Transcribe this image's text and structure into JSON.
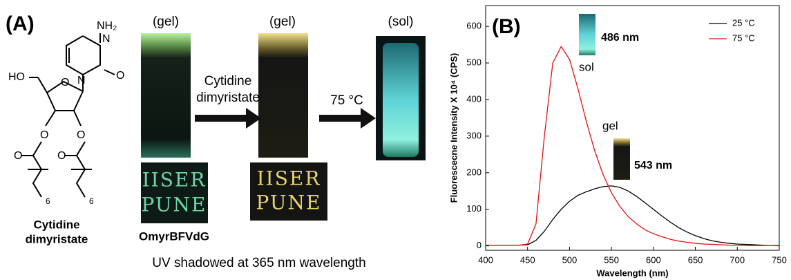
{
  "panel_a": {
    "label": "(A)",
    "structure_labels": [
      "NH₂",
      "N",
      "N",
      "O",
      "HO",
      "O",
      "O",
      "O",
      "O",
      "O",
      "6",
      "6"
    ],
    "compound": [
      "Cytidine",
      "dimyristate"
    ],
    "states": [
      "(gel)",
      "(gel)",
      "(sol)"
    ],
    "handwriting": [
      "IISER",
      "PUNE"
    ],
    "gelator": "OmyrBFVdG",
    "arrow_1": [
      "Cytidine",
      "dimyristate"
    ],
    "arrow_2": "75 °C",
    "caption": "UV shadowed at 365 nm wavelength"
  },
  "chart_data": {
    "type": "line",
    "panel_label": "(B)",
    "xlabel": "Wavelength (nm)",
    "ylabel": "Fluorescecne Intensity X 10⁴ (CPS)",
    "x": [
      400,
      410,
      420,
      430,
      440,
      450,
      460,
      470,
      480,
      490,
      500,
      510,
      520,
      530,
      540,
      550,
      560,
      570,
      580,
      590,
      600,
      610,
      620,
      630,
      640,
      650,
      660,
      670,
      680,
      690,
      700,
      710,
      720,
      730,
      740,
      750
    ],
    "series": [
      {
        "name": "25 °C",
        "color": "#000000",
        "values": [
          2,
          2,
          2,
          2,
          2,
          3,
          15,
          40,
          72,
          100,
          122,
          138,
          148,
          156,
          162,
          164,
          160,
          150,
          135,
          118,
          100,
          82,
          65,
          50,
          38,
          28,
          20,
          14,
          10,
          7,
          5,
          4,
          3,
          2,
          1,
          1
        ]
      },
      {
        "name": "75 °C",
        "color": "#e01010",
        "values": [
          2,
          2,
          2,
          2,
          2,
          5,
          60,
          300,
          500,
          545,
          510,
          430,
          340,
          260,
          195,
          145,
          108,
          80,
          60,
          44,
          33,
          25,
          18,
          13,
          10,
          7,
          5,
          4,
          3,
          2,
          2,
          1,
          1,
          1,
          1,
          0
        ]
      }
    ],
    "xlim": [
      400,
      750
    ],
    "xticks": [
      400,
      450,
      500,
      550,
      600,
      650,
      700,
      750
    ],
    "ylim": [
      -12,
      657
    ],
    "yticks": [
      0,
      100,
      200,
      300,
      400,
      500,
      600
    ],
    "legend": "upper right",
    "annotations": [
      "sol",
      "486 nm",
      "gel",
      "543 nm"
    ]
  }
}
